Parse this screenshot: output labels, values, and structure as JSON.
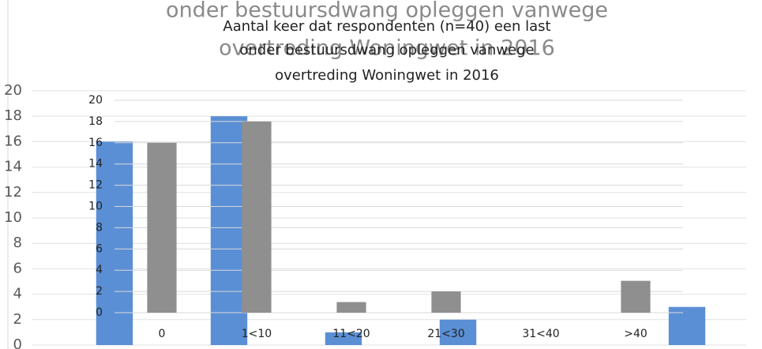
{
  "chart_data": [
    {
      "type": "bar",
      "title": [
        "onder bestuursdwang opleggen vanwege",
        "overtreding Woningwet in 2016"
      ],
      "categories": [
        null,
        null,
        null,
        null,
        null,
        null
      ],
      "values": [
        16,
        18,
        1,
        2,
        0,
        3
      ],
      "color": "#5b8fd5",
      "ylim": [
        0,
        20
      ],
      "yticks": [
        0,
        2,
        4,
        6,
        8,
        10,
        12,
        14,
        16,
        18,
        20
      ],
      "grid": true
    },
    {
      "type": "bar",
      "title": [
        "Aantal keer dat respondenten (n=40) een last",
        "onder bestuursdwang opleggen vanwege",
        "overtreding Woningwet in 2016"
      ],
      "categories": [
        "0",
        "1<10",
        "11<20",
        "21<30",
        "31<40",
        ">40"
      ],
      "values": [
        16,
        18,
        1,
        2,
        0,
        3
      ],
      "color": "#8f8f8f",
      "ylim": [
        0,
        20
      ],
      "yticks": [
        0,
        2,
        4,
        6,
        8,
        10,
        12,
        14,
        16,
        18,
        20
      ],
      "grid": true
    }
  ]
}
